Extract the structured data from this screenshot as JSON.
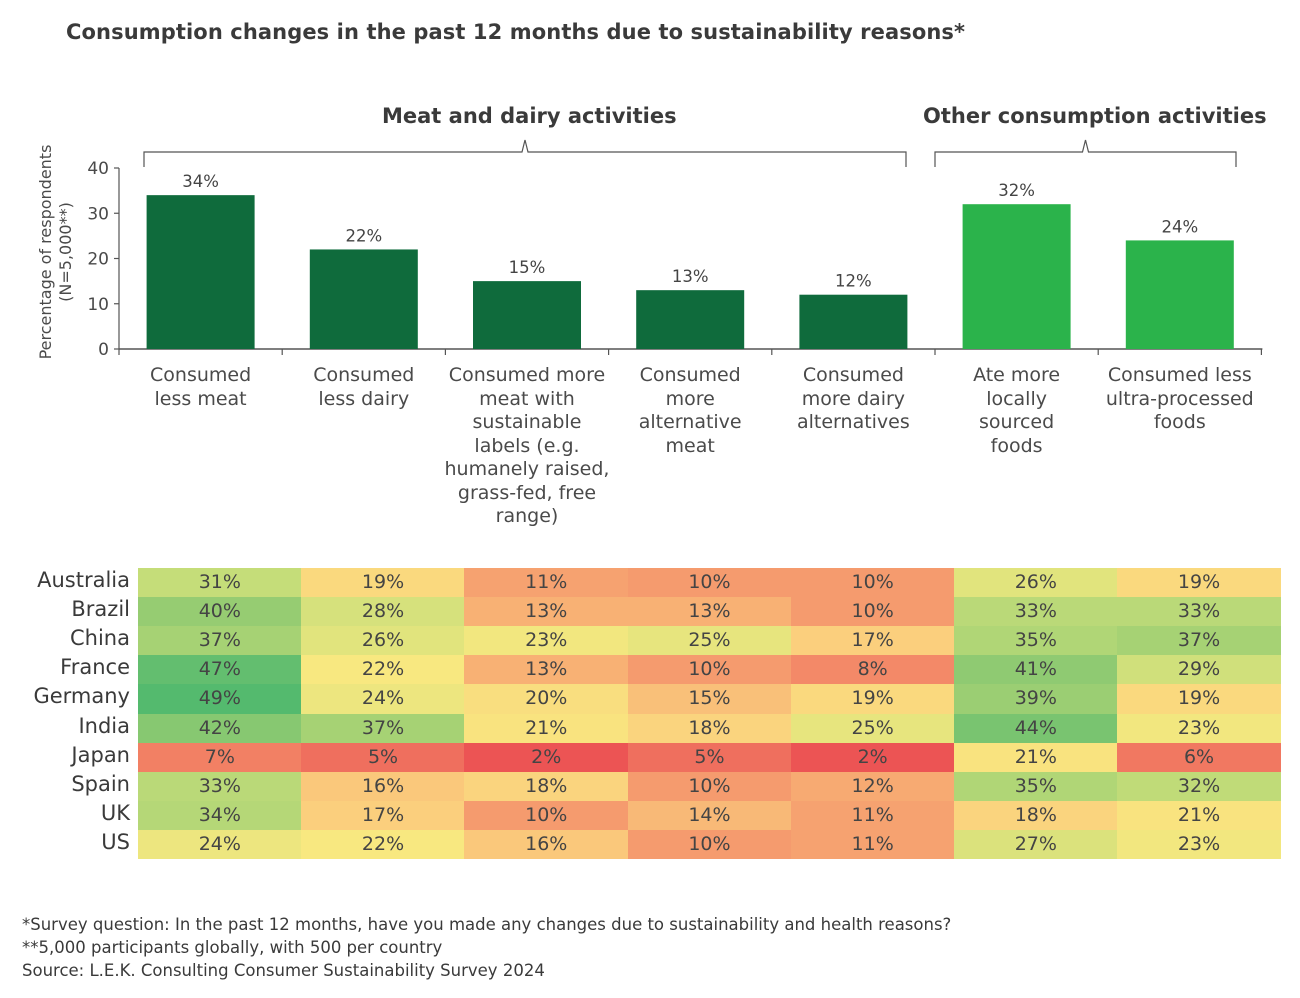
{
  "title": "Consumption changes in the past 12 months due to sustainability reasons*",
  "groups": [
    "Meat and dairy activities",
    "Other consumption activities"
  ],
  "chart_data": {
    "type": "bar",
    "title": "Consumption changes in the past 12 months due to sustainability reasons*",
    "ylabel": [
      "Percentage of respondents",
      "(N=5,000**)"
    ],
    "ylim": [
      0,
      40
    ],
    "yticks": [
      "0",
      "10",
      "20",
      "30",
      "40"
    ],
    "categories": [
      [
        "Consumed",
        "less meat"
      ],
      [
        "Consumed",
        "less dairy"
      ],
      [
        "Consumed more",
        "meat with",
        "sustainable",
        "labels (e.g.",
        "humanely raised,",
        "grass-fed, free",
        "range)"
      ],
      [
        "Consumed",
        "more",
        "alternative",
        "meat"
      ],
      [
        "Consumed",
        "more dairy",
        "alternatives"
      ],
      [
        "Ate more",
        "locally",
        "sourced",
        "foods"
      ],
      [
        "Consumed less",
        "ultra-processed",
        "foods"
      ]
    ],
    "values": [
      34,
      22,
      15,
      13,
      12,
      32,
      24
    ],
    "value_labels": [
      "34%",
      "22%",
      "15%",
      "13%",
      "12%",
      "32%",
      "24%"
    ],
    "bar_groups": [
      0,
      0,
      0,
      0,
      0,
      1,
      1
    ],
    "colors": {
      "meat_dairy": "#0f6b3c",
      "other": "#2bb34b"
    }
  },
  "heatmap": {
    "countries": [
      "Australia",
      "Brazil",
      "China",
      "France",
      "Germany",
      "India",
      "Japan",
      "Spain",
      "UK",
      "US"
    ],
    "values": [
      [
        31,
        19,
        11,
        10,
        10,
        26,
        19
      ],
      [
        40,
        28,
        13,
        13,
        10,
        33,
        33
      ],
      [
        37,
        26,
        23,
        25,
        17,
        35,
        37
      ],
      [
        47,
        22,
        13,
        10,
        8,
        41,
        29
      ],
      [
        49,
        24,
        20,
        15,
        19,
        39,
        19
      ],
      [
        42,
        37,
        21,
        18,
        25,
        44,
        23
      ],
      [
        7,
        5,
        2,
        5,
        2,
        21,
        6
      ],
      [
        33,
        16,
        18,
        10,
        12,
        35,
        32
      ],
      [
        34,
        17,
        10,
        14,
        11,
        18,
        21
      ],
      [
        24,
        22,
        16,
        10,
        11,
        27,
        23
      ]
    ]
  },
  "footnotes": {
    "survey": "*Survey question: In the past 12 months, have you made any changes due to sustainability and health reasons?",
    "participants": "**5,000 participants globally, with 500 per country",
    "source": "Source: L.E.K. Consulting Consumer Sustainability Survey 2024"
  }
}
